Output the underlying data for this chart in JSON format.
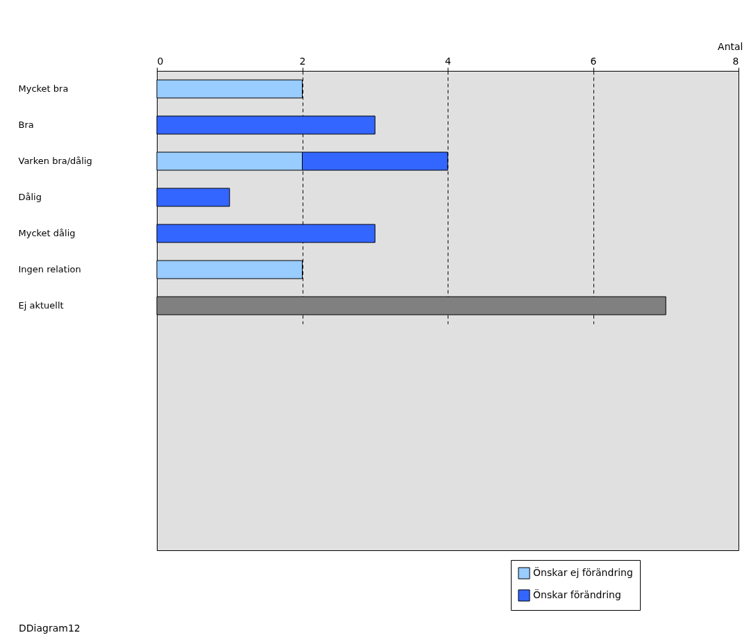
{
  "chart_data": {
    "type": "bar",
    "orientation": "horizontal",
    "stacked": true,
    "categories": [
      "Mycket bra",
      "Bra",
      "Varken bra/dålig",
      "Dålig",
      "Mycket dålig",
      "Ingen relation",
      "Ej aktuellt"
    ],
    "series": [
      {
        "name": "Önskar ej förändring",
        "color": "#99ccff",
        "values": [
          2,
          null,
          2,
          null,
          null,
          2,
          null
        ]
      },
      {
        "name": "Önskar förändring",
        "color": "#3366ff",
        "values": [
          null,
          3,
          2,
          1,
          3,
          null,
          null
        ]
      },
      {
        "color": "#808080",
        "values": [
          null,
          null,
          null,
          null,
          null,
          null,
          7
        ]
      }
    ],
    "xlim": [
      0,
      8
    ],
    "xticks": [
      0,
      2,
      4,
      6,
      8
    ],
    "xlabel": "Antal",
    "grid": "x",
    "legend": "bottom right",
    "annotations": [
      "DDiagram12"
    ]
  }
}
